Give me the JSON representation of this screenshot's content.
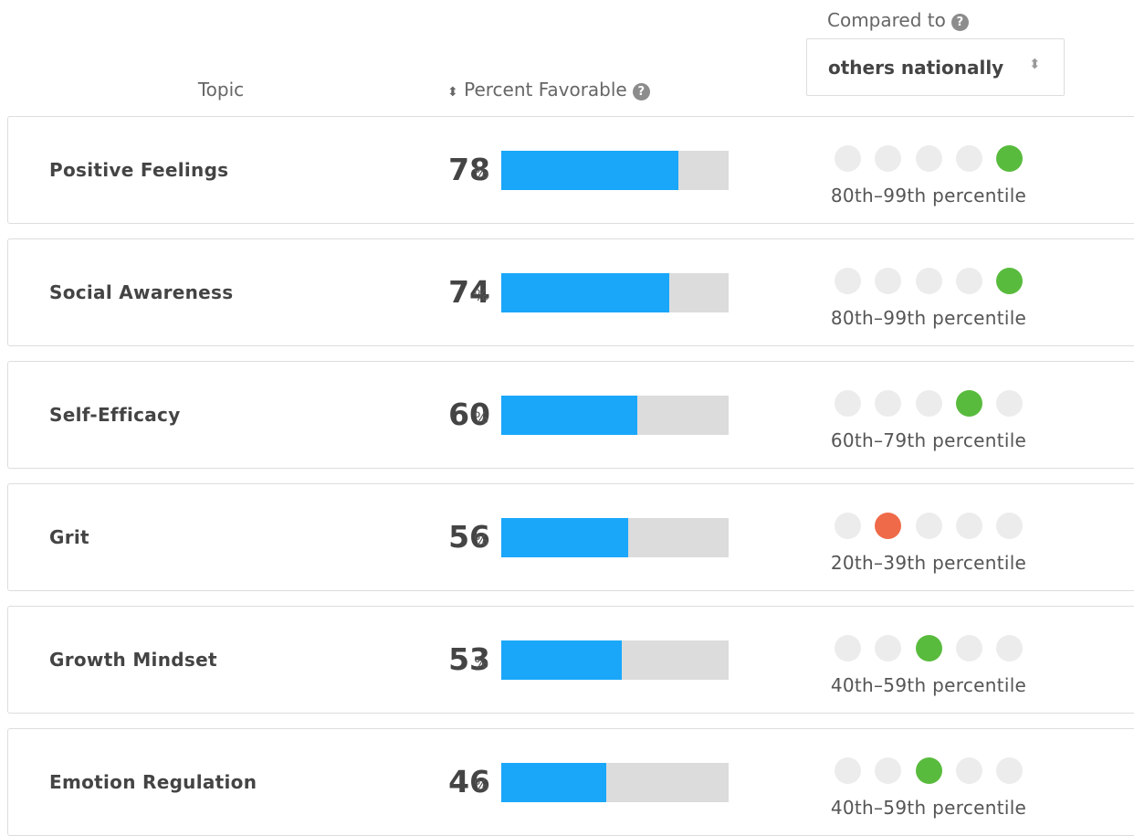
{
  "header": {
    "topic": "Topic",
    "percent_favorable": "Percent Favorable",
    "compared_to": "Compared to",
    "comparison_select": "others nationally"
  },
  "bar_max": 100,
  "dot_count": 5,
  "rows": [
    {
      "topic": "Positive Feelings",
      "value": 78,
      "unit": "%",
      "active_dot": 4,
      "dot_color": "#59bb3d",
      "percentile": "80th–99th percentile"
    },
    {
      "topic": "Social Awareness",
      "value": 74,
      "unit": "%",
      "active_dot": 4,
      "dot_color": "#59bb3d",
      "percentile": "80th–99th percentile"
    },
    {
      "topic": "Self-Efficacy",
      "value": 60,
      "unit": "%",
      "active_dot": 3,
      "dot_color": "#59bb3d",
      "percentile": "60th–79th percentile"
    },
    {
      "topic": "Grit",
      "value": 56,
      "unit": "%",
      "active_dot": 1,
      "dot_color": "#ef6a48",
      "percentile": "20th–39th percentile"
    },
    {
      "topic": "Growth Mindset",
      "value": 53,
      "unit": "%",
      "active_dot": 2,
      "dot_color": "#59bb3d",
      "percentile": "40th–59th percentile"
    },
    {
      "topic": "Emotion Regulation",
      "value": 46,
      "unit": "%",
      "active_dot": 2,
      "dot_color": "#59bb3d",
      "percentile": "40th–59th percentile"
    }
  ]
}
